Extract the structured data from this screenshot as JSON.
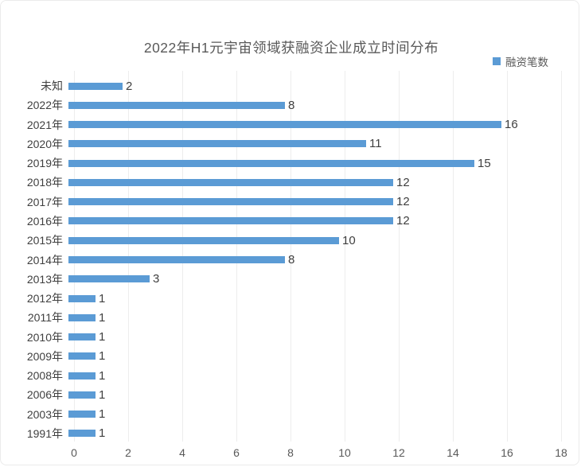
{
  "window": {
    "background": "#ffffff",
    "border_color": "#ebebeb"
  },
  "chart_data": {
    "type": "bar",
    "orientation": "horizontal",
    "title": "2022年H1元宇宙领域获融资企业成立时间分布",
    "xlabel": "",
    "ylabel": "",
    "categories": [
      "未知",
      "2022年",
      "2021年",
      "2020年",
      "2019年",
      "2018年",
      "2017年",
      "2016年",
      "2015年",
      "2014年",
      "2013年",
      "2012年",
      "2011年",
      "2010年",
      "2009年",
      "2008年",
      "2006年",
      "2003年",
      "1991年"
    ],
    "values": [
      2,
      8,
      16,
      11,
      15,
      12,
      12,
      12,
      10,
      8,
      3,
      1,
      1,
      1,
      1,
      1,
      1,
      1,
      1
    ],
    "xlim": [
      0,
      18
    ],
    "x_ticks": [
      0,
      2,
      4,
      6,
      8,
      10,
      12,
      14,
      16,
      18
    ],
    "grid": "vertical-only",
    "data_labels": true,
    "legend_position": "top-right",
    "legend": [
      {
        "label": "融资笔数",
        "color": "#5B9BD5"
      }
    ],
    "bar_color": "#5B9BD5",
    "title_color": "#595959",
    "label_color": "#3f3f3f",
    "tick_color": "#595959",
    "gridline_color": "#ededed"
  }
}
